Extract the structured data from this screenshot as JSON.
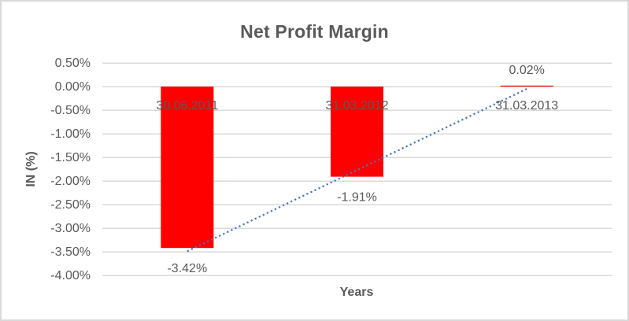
{
  "chart_data": {
    "type": "bar",
    "title": "Net Profit Margin",
    "xlabel": "Years",
    "ylabel": "IN (%)",
    "categories": [
      "30.06.2011",
      "31.03.2012",
      "31.03.2013"
    ],
    "values": [
      -3.42,
      -1.91,
      0.02
    ],
    "data_labels": [
      "-3.42%",
      "-1.91%",
      "0.02%"
    ],
    "yticks": [
      {
        "label": "0.50%",
        "value": 0.5
      },
      {
        "label": "0.00%",
        "value": 0.0
      },
      {
        "label": "-0.50%",
        "value": -0.5
      },
      {
        "label": "-1.00%",
        "value": -1.0
      },
      {
        "label": "-1.50%",
        "value": -1.5
      },
      {
        "label": "-2.00%",
        "value": -2.0
      },
      {
        "label": "-2.50%",
        "value": -2.5
      },
      {
        "label": "-3.00%",
        "value": -3.0
      },
      {
        "label": "-3.50%",
        "value": -3.5
      },
      {
        "label": "-4.00%",
        "value": -4.0
      }
    ],
    "ylim": [
      -4.0,
      0.5
    ],
    "grid": true,
    "legend": "none",
    "bar_color": "#ff0000",
    "trendline": {
      "type": "linear",
      "style": "dotted",
      "color": "#4472c4"
    },
    "text_color": "#595959",
    "gridline_color": "#d9d9d9",
    "border_color": "#d9d9d9",
    "background_color": "#ffffff"
  }
}
